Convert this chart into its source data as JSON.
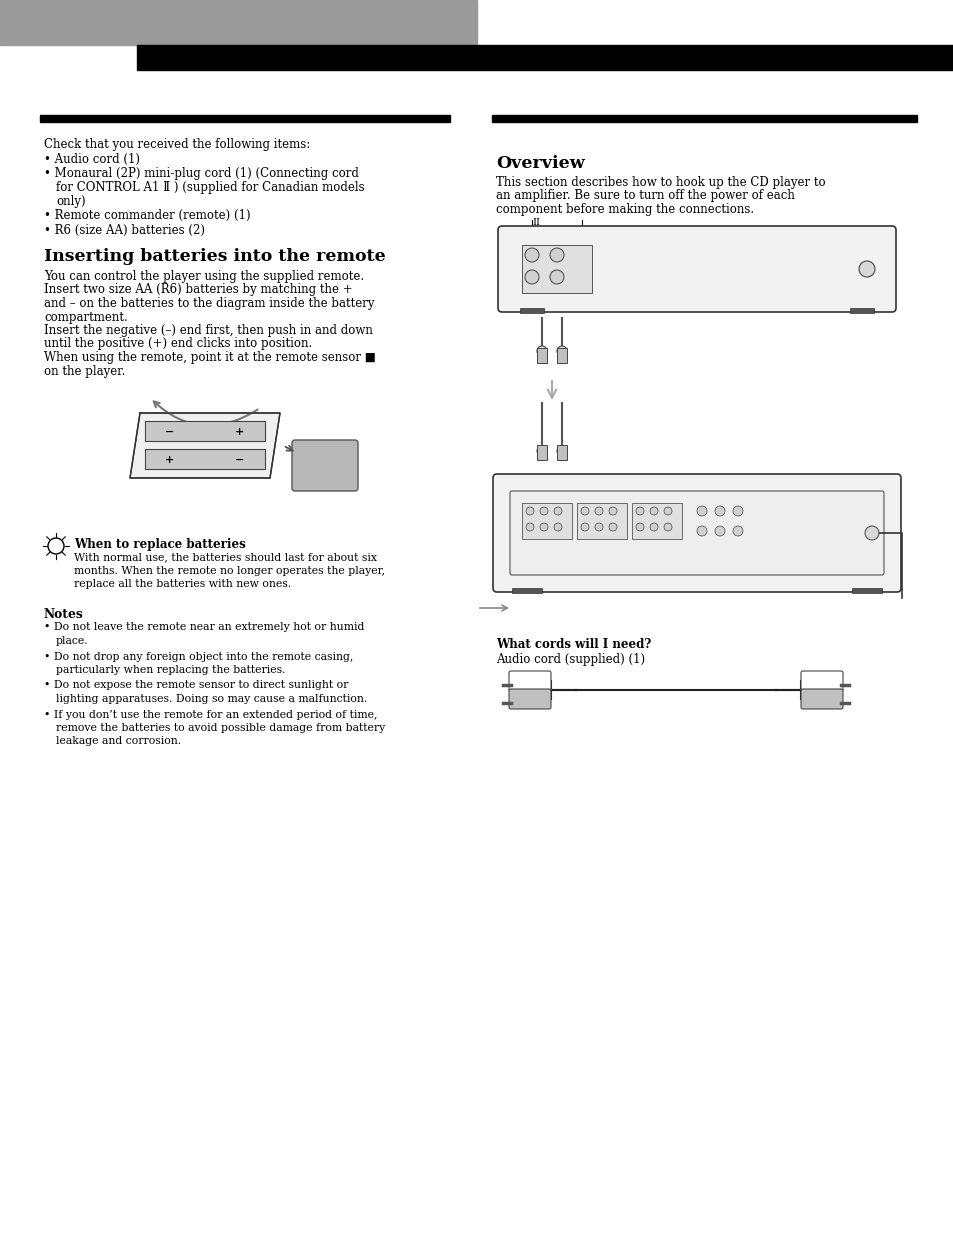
{
  "bg_color": "#ffffff",
  "header_gray": "#999999",
  "header_black": "#000000",
  "checklist_header": "Check that you received the following items:",
  "checklist_items": [
    "Audio cord (1)",
    "Monaural (2P) mini-plug cord (1) (Connecting cord\n  for CONTROL A1 Ⅱ ) (supplied for Canadian models\n  only)",
    "Remote commander (remote) (1)",
    "R6 (size AA) batteries (2)"
  ],
  "left_section_title": "Inserting batteries into the remote",
  "inserting_body_lines": [
    "You can control the player using the supplied remote.",
    "Insert two size AA (R6) batteries by matching the +",
    "and – on the batteries to the diagram inside the battery",
    "compartment.",
    "Insert the negative (–) end first, then push in and down",
    "until the positive (+) end clicks into position.",
    "When using the remote, point it at the remote sensor ■",
    "on the player."
  ],
  "tip_title": "When to replace batteries",
  "tip_body_lines": [
    "With normal use, the batteries should last for about six",
    "months. When the remote no longer operates the player,",
    "replace all the batteries with new ones."
  ],
  "notes_title": "Notes",
  "notes_items": [
    "Do not leave the remote near an extremely hot or humid\nplace.",
    "Do not drop any foreign object into the remote casing,\nparticularly when replacing the batteries.",
    "Do not expose the remote sensor to direct sunlight or\nlighting apparatuses. Doing so may cause a malfunction.",
    "If you don’t use the remote for an extended period of time,\nremove the batteries to avoid possible damage from battery\nleakage and corrosion."
  ],
  "right_section_title": "Overview",
  "overview_body_lines": [
    "This section describes how to hook up the CD player to",
    "an amplifier. Be sure to turn off the power of each",
    "component before making the connections."
  ],
  "what_cords_title": "What cords will I need?",
  "what_cords_body": "Audio cord (supplied) (1)"
}
